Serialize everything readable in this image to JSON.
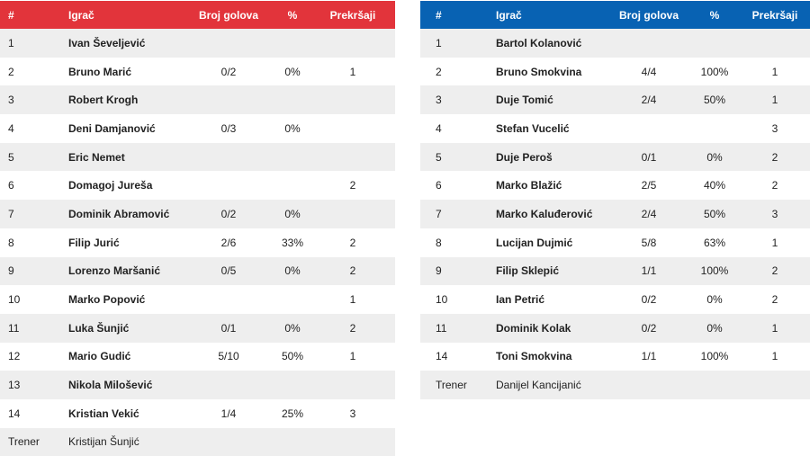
{
  "home": {
    "headers": {
      "num": "#",
      "player": "Igrač",
      "goals": "Broj golova",
      "pct": "%",
      "fouls": "Prekršaji"
    },
    "players": [
      {
        "num": "1",
        "name": "Ivan Ševeljević",
        "goals": "",
        "pct": "",
        "fouls": ""
      },
      {
        "num": "2",
        "name": "Bruno Marić",
        "goals": "0/2",
        "pct": "0%",
        "fouls": "1"
      },
      {
        "num": "3",
        "name": "Robert Krogh",
        "goals": "",
        "pct": "",
        "fouls": ""
      },
      {
        "num": "4",
        "name": "Deni Damjanović",
        "goals": "0/3",
        "pct": "0%",
        "fouls": ""
      },
      {
        "num": "5",
        "name": "Eric Nemet",
        "goals": "",
        "pct": "",
        "fouls": ""
      },
      {
        "num": "6",
        "name": "Domagoj Jureša",
        "goals": "",
        "pct": "",
        "fouls": "2"
      },
      {
        "num": "7",
        "name": "Dominik Abramović",
        "goals": "0/2",
        "pct": "0%",
        "fouls": ""
      },
      {
        "num": "8",
        "name": "Filip Jurić",
        "goals": "2/6",
        "pct": "33%",
        "fouls": "2"
      },
      {
        "num": "9",
        "name": "Lorenzo Maršanić",
        "goals": "0/5",
        "pct": "0%",
        "fouls": "2"
      },
      {
        "num": "10",
        "name": "Marko Popović",
        "goals": "",
        "pct": "",
        "fouls": "1"
      },
      {
        "num": "11",
        "name": "Luka Šunjić",
        "goals": "0/1",
        "pct": "0%",
        "fouls": "2"
      },
      {
        "num": "12",
        "name": "Mario Gudić",
        "goals": "5/10",
        "pct": "50%",
        "fouls": "1"
      },
      {
        "num": "13",
        "name": "Nikola Milošević",
        "goals": "",
        "pct": "",
        "fouls": ""
      },
      {
        "num": "14",
        "name": "Kristian Vekić",
        "goals": "1/4",
        "pct": "25%",
        "fouls": "3"
      }
    ],
    "coach": {
      "label": "Trener",
      "name": "Kristijan Šunjić"
    }
  },
  "away": {
    "headers": {
      "num": "#",
      "player": "Igrač",
      "goals": "Broj golova",
      "pct": "%",
      "fouls": "Prekršaji"
    },
    "players": [
      {
        "num": "1",
        "name": "Bartol Kolanović",
        "goals": "",
        "pct": "",
        "fouls": ""
      },
      {
        "num": "2",
        "name": "Bruno Smokvina",
        "goals": "4/4",
        "pct": "100%",
        "fouls": "1"
      },
      {
        "num": "3",
        "name": "Duje Tomić",
        "goals": "2/4",
        "pct": "50%",
        "fouls": "1"
      },
      {
        "num": "4",
        "name": "Stefan Vucelić",
        "goals": "",
        "pct": "",
        "fouls": "3"
      },
      {
        "num": "5",
        "name": "Duje Peroš",
        "goals": "0/1",
        "pct": "0%",
        "fouls": "2"
      },
      {
        "num": "6",
        "name": "Marko Blažić",
        "goals": "2/5",
        "pct": "40%",
        "fouls": "2"
      },
      {
        "num": "7",
        "name": "Marko Kaluđerović",
        "goals": "2/4",
        "pct": "50%",
        "fouls": "3"
      },
      {
        "num": "8",
        "name": "Lucijan Dujmić",
        "goals": "5/8",
        "pct": "63%",
        "fouls": "1"
      },
      {
        "num": "9",
        "name": "Filip Sklepić",
        "goals": "1/1",
        "pct": "100%",
        "fouls": "2"
      },
      {
        "num": "10",
        "name": "Ian Petrić",
        "goals": "0/2",
        "pct": "0%",
        "fouls": "2"
      },
      {
        "num": "11",
        "name": "Dominik Kolak",
        "goals": "0/2",
        "pct": "0%",
        "fouls": "1"
      },
      {
        "num": "14",
        "name": "Toni Smokvina",
        "goals": "1/1",
        "pct": "100%",
        "fouls": "1"
      }
    ],
    "coach": {
      "label": "Trener",
      "name": "Danijel Kancijanić"
    }
  },
  "colors": {
    "home_header": "#e2343b",
    "away_header": "#0862b3",
    "row_shade": "#eeeeee"
  }
}
